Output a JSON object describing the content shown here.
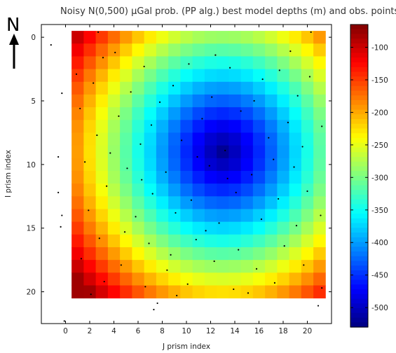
{
  "chart_data": {
    "type": "heatmap",
    "title": "Noisy N(0,500) µGal prob. (PP alg.) best model depths (m) and obs. points",
    "xlabel": "J prism index",
    "ylabel": "I prism index",
    "north_label": "N",
    "xlim": [
      -2,
      22
    ],
    "ylim": [
      -1,
      22.5
    ],
    "x_ticks": [
      "0",
      "2",
      "4",
      "6",
      "8",
      "10",
      "12",
      "14",
      "16",
      "18",
      "20"
    ],
    "y_ticks": [
      "0",
      "5",
      "10",
      "15",
      "20"
    ],
    "colorbar": {
      "range": [
        -530,
        -65
      ],
      "ticks": [
        "-100",
        "-150",
        "-200",
        "-250",
        "-300",
        "-350",
        "-400",
        "-450",
        "-500"
      ],
      "colormap": "jet"
    },
    "grid_rows": 21,
    "grid_cols": 21,
    "depth_model": {
      "min_depth": -520,
      "max_depth": -80,
      "deep_center_i": 9,
      "deep_center_j": 12
    },
    "obs_points": [
      [
        -1.2,
        0.6
      ],
      [
        2.7,
        -0.4
      ],
      [
        20.3,
        -0.4
      ],
      [
        -0.3,
        4.4
      ],
      [
        21.2,
        7.0
      ],
      [
        -0.6,
        9.4
      ],
      [
        -0.6,
        12.2
      ],
      [
        -0.3,
        14.0
      ],
      [
        -0.4,
        14.9
      ],
      [
        21.1,
        14.0
      ],
      [
        21.2,
        19.7
      ],
      [
        7.3,
        21.4
      ],
      [
        7.6,
        20.9
      ],
      [
        -0.1,
        22.3
      ],
      [
        20.9,
        21.1
      ],
      [
        3.1,
        1.6
      ],
      [
        6.5,
        2.3
      ],
      [
        10.2,
        2.1
      ],
      [
        13.6,
        2.4
      ],
      [
        17.7,
        2.6
      ],
      [
        2.3,
        3.6
      ],
      [
        5.4,
        4.3
      ],
      [
        8.9,
        3.8
      ],
      [
        12.1,
        4.7
      ],
      [
        16.3,
        3.3
      ],
      [
        19.2,
        4.6
      ],
      [
        1.2,
        5.6
      ],
      [
        4.4,
        6.2
      ],
      [
        7.1,
        6.9
      ],
      [
        11.3,
        6.4
      ],
      [
        14.5,
        5.8
      ],
      [
        18.4,
        6.7
      ],
      [
        2.6,
        7.7
      ],
      [
        6.2,
        8.4
      ],
      [
        9.6,
        8.1
      ],
      [
        13.2,
        8.9
      ],
      [
        16.8,
        7.9
      ],
      [
        19.6,
        8.6
      ],
      [
        1.6,
        9.8
      ],
      [
        5.1,
        10.3
      ],
      [
        8.3,
        10.6
      ],
      [
        11.9,
        10.1
      ],
      [
        15.4,
        10.8
      ],
      [
        18.9,
        10.2
      ],
      [
        3.4,
        11.7
      ],
      [
        7.2,
        12.3
      ],
      [
        10.4,
        12.8
      ],
      [
        14.1,
        12.2
      ],
      [
        17.6,
        12.7
      ],
      [
        20.0,
        12.1
      ],
      [
        1.9,
        13.6
      ],
      [
        5.8,
        14.1
      ],
      [
        9.1,
        13.8
      ],
      [
        12.7,
        14.6
      ],
      [
        16.2,
        14.3
      ],
      [
        19.1,
        14.8
      ],
      [
        2.8,
        15.8
      ],
      [
        6.9,
        16.2
      ],
      [
        10.8,
        15.9
      ],
      [
        14.3,
        16.7
      ],
      [
        18.1,
        16.4
      ],
      [
        1.3,
        17.4
      ],
      [
        4.6,
        17.9
      ],
      [
        8.4,
        18.3
      ],
      [
        12.3,
        17.6
      ],
      [
        15.8,
        18.2
      ],
      [
        19.7,
        17.9
      ],
      [
        3.2,
        19.2
      ],
      [
        6.6,
        19.6
      ],
      [
        10.1,
        19.4
      ],
      [
        13.9,
        19.8
      ],
      [
        17.3,
        19.3
      ],
      [
        2.1,
        20.2
      ],
      [
        9.2,
        20.3
      ],
      [
        15.1,
        20.1
      ],
      [
        4.1,
        1.2
      ],
      [
        12.4,
        1.4
      ],
      [
        18.6,
        1.1
      ],
      [
        0.9,
        2.9
      ],
      [
        20.2,
        3.1
      ],
      [
        7.8,
        5.1
      ],
      [
        15.6,
        5.0
      ],
      [
        3.7,
        9.1
      ],
      [
        10.9,
        9.4
      ],
      [
        17.2,
        9.6
      ],
      [
        6.3,
        11.2
      ],
      [
        13.4,
        11.1
      ],
      [
        4.9,
        15.3
      ],
      [
        11.6,
        15.2
      ],
      [
        8.7,
        17.1
      ]
    ]
  }
}
